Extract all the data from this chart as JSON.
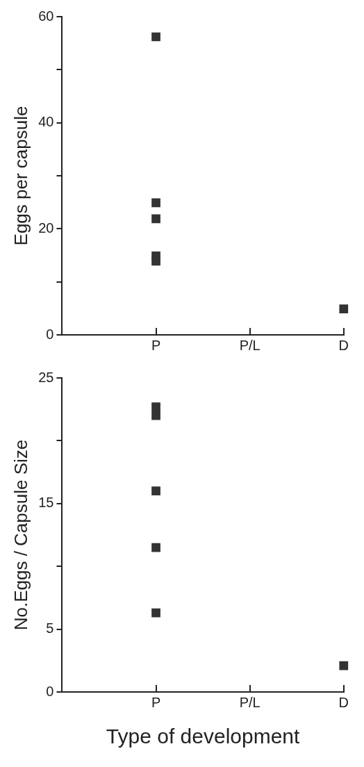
{
  "chart_data": [
    {
      "type": "scatter",
      "ylabel": "Eggs per capsule",
      "categories": [
        "P",
        "P/L",
        "D"
      ],
      "ylim": [
        0,
        60
      ],
      "yticks": [
        0,
        {
          "value": 10,
          "label": null
        },
        20,
        {
          "value": 30,
          "label": null
        },
        40,
        {
          "value": 50,
          "label": null
        },
        60
      ],
      "grid": false,
      "legend": false,
      "marker": "square",
      "series": [
        {
          "color": "#333333",
          "x": [
            "P",
            "P",
            "P",
            "P",
            "P",
            "D"
          ],
          "values": [
            56.2,
            24.9,
            21.9,
            14.9,
            13.9,
            4.9
          ]
        }
      ]
    },
    {
      "type": "scatter",
      "xlabel": "Type of development",
      "ylabel": "No.Eggs / Capsule Size",
      "categories": [
        "P",
        "P/L",
        "D"
      ],
      "ylim": [
        0,
        25
      ],
      "yticks": [
        0,
        5,
        {
          "value": 10,
          "label": null
        },
        15,
        {
          "value": 20,
          "label": null
        },
        25
      ],
      "grid": false,
      "legend": false,
      "marker": "square",
      "series": [
        {
          "color": "#333333",
          "x": [
            "P",
            "P",
            "P",
            "P",
            "P",
            "D"
          ],
          "values": [
            22.7,
            22,
            16,
            11.5,
            6.3,
            2.1
          ]
        }
      ]
    }
  ]
}
